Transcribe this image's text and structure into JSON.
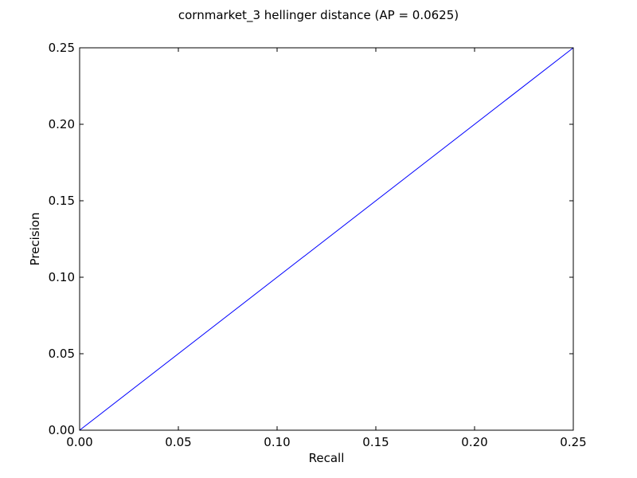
{
  "chart_data": {
    "type": "line",
    "title": "cornmarket_3 hellinger distance  (AP = 0.0625)",
    "xlabel": "Recall",
    "ylabel": "Precision",
    "xlim": [
      0.0,
      0.25
    ],
    "ylim": [
      0.0,
      0.25
    ],
    "xticks": [
      "0.00",
      "0.05",
      "0.10",
      "0.15",
      "0.20",
      "0.25"
    ],
    "yticks": [
      "0.00",
      "0.05",
      "0.10",
      "0.15",
      "0.20",
      "0.25"
    ],
    "grid": false,
    "legend": "none",
    "series": [
      {
        "color": "#0000ff",
        "x": [
          0.0,
          0.25
        ],
        "y": [
          0.0,
          0.25
        ]
      }
    ]
  }
}
